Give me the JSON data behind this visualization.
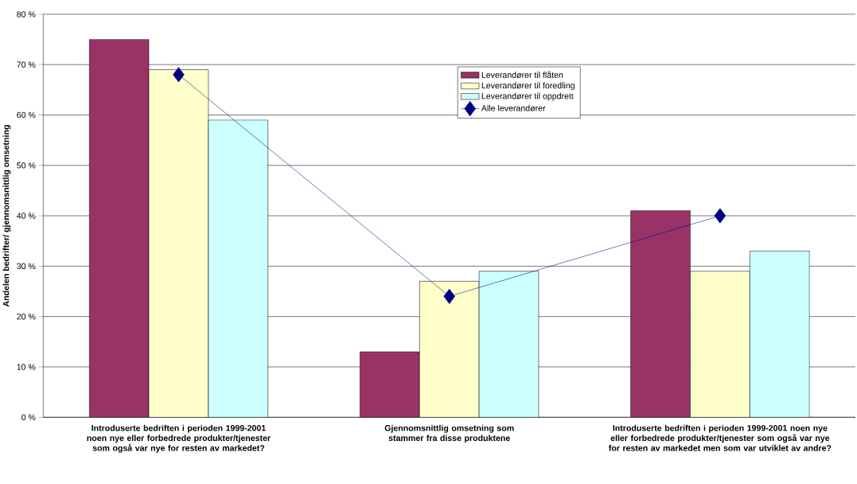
{
  "chart_data": {
    "type": "bar",
    "ylabel": "Andelen bedrifter/ gjennomsnittlig omsetning",
    "categories": [
      "Introduserte bedriften i perioden 1999-2001 noen nye eller forbedrede produkter/tjenester som også var nye for resten av markedet?",
      "Gjennomsnittlig omsetning som stammer fra disse produktene",
      "Introduserte bedriften i perioden 1999-2001 noen nye eller forbedrede produkter/tjenester som også var nye for resten av markedet men som var utviklet av andre?"
    ],
    "series": [
      {
        "name": "Leverandører til flåten",
        "color": "#993366",
        "values": [
          75,
          13,
          41
        ]
      },
      {
        "name": "Leverandører til foredling",
        "color": "#ffffcc",
        "values": [
          69,
          27,
          29
        ]
      },
      {
        "name": "Leverandører til oppdrett",
        "color": "#ccffff",
        "values": [
          59,
          29,
          33
        ]
      },
      {
        "name": "Alle leverandører",
        "type": "line",
        "color": "#000080",
        "marker": "diamond",
        "values": [
          68,
          24,
          40
        ]
      }
    ],
    "ylim": [
      0,
      80
    ],
    "yticks": [
      {
        "value": 0,
        "label": "0 %"
      },
      {
        "value": 10,
        "label": "10 %"
      },
      {
        "value": 20,
        "label": "20 %"
      },
      {
        "value": 30,
        "label": "30 %"
      },
      {
        "value": 40,
        "label": "40 %"
      },
      {
        "value": 50,
        "label": "50 %"
      },
      {
        "value": 60,
        "label": "60 %"
      },
      {
        "value": 70,
        "label": "70 %"
      },
      {
        "value": 80,
        "label": "80 %"
      }
    ],
    "grid": "y",
    "legend": "top right"
  }
}
